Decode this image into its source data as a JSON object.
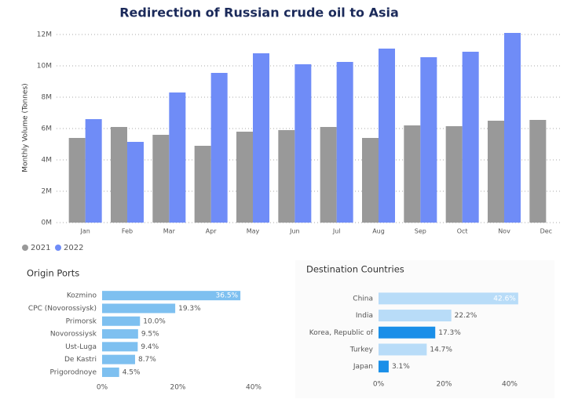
{
  "chart_data": [
    {
      "type": "bar",
      "title": "Redirection of Russian crude oil to Asia",
      "y_label": "Monthly Volume (Tonnes)",
      "categories": [
        "Jan",
        "Feb",
        "Mar",
        "Apr",
        "May",
        "Jun",
        "Jul",
        "Aug",
        "Sep",
        "Oct",
        "Nov",
        "Dec"
      ],
      "series": [
        {
          "name": "2021",
          "color": "#999999",
          "values": [
            5400000,
            6100000,
            5600000,
            4900000,
            5800000,
            5900000,
            6100000,
            5400000,
            6200000,
            6150000,
            6500000,
            6550000
          ]
        },
        {
          "name": "2022",
          "color": "#6f8cf7",
          "values": [
            6600000,
            5150000,
            8300000,
            9550000,
            10800000,
            10100000,
            10250000,
            11100000,
            10550000,
            10900000,
            12100000,
            null
          ]
        }
      ],
      "ylim": [
        0,
        12100000
      ],
      "yticks": [
        {
          "value": 0,
          "label": "0M"
        },
        {
          "value": 2000000,
          "label": "2M"
        },
        {
          "value": 4000000,
          "label": "4M"
        },
        {
          "value": 6000000,
          "label": "6M"
        },
        {
          "value": 8000000,
          "label": "8M"
        },
        {
          "value": 10000000,
          "label": "10M"
        },
        {
          "value": 12000000,
          "label": "12M"
        }
      ],
      "grid": true,
      "legend": "bottom-left"
    },
    {
      "type": "hbar",
      "title": "Origin Ports",
      "categories": [
        "Kozmino",
        "CPC (Novorossiysk)",
        "Primorsk",
        "Novorossiysk",
        "Ust-Luga",
        "De Kastri",
        "Prigorodnoye"
      ],
      "values": [
        36.5,
        19.3,
        10.0,
        9.5,
        9.4,
        8.7,
        4.5
      ],
      "value_labels": [
        "36.5%",
        "19.3%",
        "10.0%",
        "9.5%",
        "9.4%",
        "8.7%",
        "4.5%"
      ],
      "color": "#7ec0f0",
      "xlim": [
        0,
        40
      ],
      "xticks": [
        {
          "value": 0,
          "label": "0%"
        },
        {
          "value": 20,
          "label": "20%"
        },
        {
          "value": 40,
          "label": "40%"
        }
      ]
    },
    {
      "type": "hbar",
      "title": "Destination Countries",
      "categories": [
        "China",
        "India",
        "Korea, Republic of",
        "Turkey",
        "Japan"
      ],
      "values": [
        42.6,
        22.2,
        17.3,
        14.7,
        3.1
      ],
      "value_labels": [
        "42.6%",
        "22.2%",
        "17.3%",
        "14.7%",
        "3.1%"
      ],
      "colors": [
        "#b8dcf8",
        "#b8dcf8",
        "#1a8fe8",
        "#b8dcf8",
        "#1a8fe8"
      ],
      "xlim": [
        0,
        40
      ],
      "xticks": [
        {
          "value": 0,
          "label": "0%"
        },
        {
          "value": 20,
          "label": "20%"
        },
        {
          "value": 40,
          "label": "40%"
        }
      ]
    }
  ]
}
